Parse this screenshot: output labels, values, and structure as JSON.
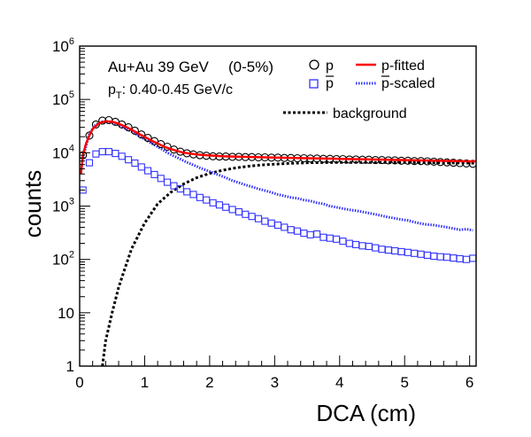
{
  "chart_data": {
    "type": "scatter",
    "xlabel": "DCA (cm)",
    "ylabel": "counts",
    "xlim": [
      0,
      6.1
    ],
    "ylim": [
      1,
      1000000
    ],
    "yscale": "log",
    "grid": false,
    "legend_position": "top-right",
    "x_ticks": [
      "0",
      "1",
      "2",
      "3",
      "4",
      "5",
      "6"
    ],
    "y_ticks": [
      "1",
      "10",
      "10^2",
      "10^3",
      "10^4",
      "10^5",
      "10^6"
    ],
    "annotations": {
      "system": "Au+Au 39 GeV",
      "centrality": "(0-5%)",
      "pt_prefix": "p",
      "pt_sub": "T",
      "pt_range": ": 0.40-0.45 GeV/c"
    },
    "legend": [
      {
        "label": "p",
        "marker": "open-circle",
        "color": "#000000"
      },
      {
        "label": "p-fitted",
        "marker": "solid-line",
        "color": "#ff0000"
      },
      {
        "label": "p",
        "overline": true,
        "marker": "open-square",
        "color": "#3333ff"
      },
      {
        "label": "p",
        "overline": true,
        "suffix": "-scaled",
        "marker": "dotted-line",
        "color": "#3333ff"
      },
      {
        "label": "background",
        "marker": "dotted-line",
        "color": "#000000"
      }
    ],
    "series": [
      {
        "name": "p",
        "marker": "open-circle",
        "color": "#000000",
        "x": [
          0.05,
          0.15,
          0.25,
          0.35,
          0.45,
          0.55,
          0.65,
          0.75,
          0.85,
          0.95,
          1.05,
          1.15,
          1.25,
          1.35,
          1.45,
          1.55,
          1.65,
          1.75,
          1.85,
          1.95,
          2.05,
          2.15,
          2.25,
          2.35,
          2.45,
          2.55,
          2.65,
          2.75,
          2.85,
          2.95,
          3.05,
          3.15,
          3.25,
          3.35,
          3.45,
          3.55,
          3.65,
          3.75,
          3.85,
          3.95,
          4.05,
          4.15,
          4.25,
          4.35,
          4.45,
          4.55,
          4.65,
          4.75,
          4.85,
          4.95,
          5.05,
          5.15,
          5.25,
          5.35,
          5.45,
          5.55,
          5.65,
          5.75,
          5.85,
          5.95,
          6.05
        ],
        "y": [
          9000,
          21000,
          34000,
          40000,
          41000,
          38000,
          34000,
          30000,
          26000,
          22000,
          19000,
          16500,
          14500,
          13000,
          11500,
          10500,
          9800,
          9300,
          9000,
          8800,
          8600,
          8500,
          8500,
          8400,
          8400,
          8300,
          8300,
          8200,
          8200,
          8100,
          8100,
          8000,
          8000,
          7900,
          7900,
          7800,
          7800,
          7700,
          7700,
          7600,
          7600,
          7500,
          7500,
          7400,
          7400,
          7300,
          7300,
          7200,
          7200,
          7100,
          7100,
          7000,
          7000,
          6900,
          6800,
          6700,
          6600,
          6500,
          6400,
          6300,
          6200
        ]
      },
      {
        "name": "p-fitted",
        "marker": "line",
        "color": "#ff0000",
        "x": [
          0.02,
          0.05,
          0.1,
          0.15,
          0.2,
          0.3,
          0.4,
          0.5,
          0.6,
          0.7,
          0.8,
          0.9,
          1.0,
          1.1,
          1.2,
          1.3,
          1.4,
          1.5,
          1.6,
          1.8,
          2.0,
          2.2,
          2.5,
          3.0,
          3.5,
          4.0,
          4.5,
          5.0,
          5.5,
          6.0,
          6.1
        ],
        "y": [
          4000,
          9000,
          15000,
          21000,
          28000,
          36000,
          39000,
          38000,
          35000,
          31000,
          27000,
          23000,
          20000,
          17000,
          15000,
          13000,
          11800,
          10800,
          10000,
          9300,
          8900,
          8600,
          8400,
          8100,
          7900,
          7700,
          7500,
          7300,
          7100,
          6900,
          6900
        ]
      },
      {
        "name": "p̄",
        "marker": "open-square",
        "color": "#3333ff",
        "x": [
          0.05,
          0.15,
          0.25,
          0.35,
          0.45,
          0.55,
          0.65,
          0.75,
          0.85,
          0.95,
          1.05,
          1.15,
          1.25,
          1.35,
          1.45,
          1.55,
          1.65,
          1.75,
          1.85,
          1.95,
          2.05,
          2.15,
          2.25,
          2.35,
          2.45,
          2.55,
          2.65,
          2.75,
          2.85,
          2.95,
          3.05,
          3.15,
          3.25,
          3.35,
          3.45,
          3.55,
          3.65,
          3.75,
          3.85,
          3.95,
          4.05,
          4.15,
          4.25,
          4.35,
          4.45,
          4.55,
          4.65,
          4.75,
          4.85,
          4.95,
          5.05,
          5.15,
          5.25,
          5.35,
          5.45,
          5.55,
          5.65,
          5.75,
          5.85,
          5.95,
          6.05
        ],
        "y": [
          2000,
          6500,
          9500,
          10500,
          10500,
          9700,
          8600,
          7400,
          6400,
          5400,
          4600,
          3900,
          3300,
          2800,
          2400,
          2100,
          1850,
          1650,
          1450,
          1300,
          1150,
          1050,
          950,
          860,
          780,
          700,
          640,
          580,
          520,
          480,
          440,
          400,
          360,
          340,
          310,
          290,
          300,
          260,
          250,
          240,
          220,
          200,
          190,
          180,
          175,
          165,
          155,
          150,
          145,
          140,
          135,
          130,
          125,
          120,
          115,
          112,
          110,
          106,
          103,
          100,
          105
        ]
      },
      {
        "name": "p̄-scaled",
        "marker": "dotted-line",
        "color": "#3333ff",
        "x": [
          0.05,
          0.15,
          0.25,
          0.35,
          0.45,
          0.55,
          0.65,
          0.75,
          0.85,
          0.95,
          1.05,
          1.15,
          1.25,
          1.35,
          1.45,
          1.55,
          1.65,
          1.75,
          1.85,
          1.95,
          2.05,
          2.15,
          2.25,
          2.35,
          2.45,
          2.55,
          2.65,
          2.75,
          2.85,
          2.95,
          3.05,
          3.15,
          3.25,
          3.35,
          3.45,
          3.55,
          3.65,
          3.75,
          3.85,
          3.95,
          4.05,
          4.15,
          4.25,
          4.35,
          4.45,
          4.55,
          4.65,
          4.75,
          4.85,
          4.95,
          5.05,
          5.15,
          5.25,
          5.35,
          5.45,
          5.55,
          5.65,
          5.75,
          5.85,
          5.95,
          6.05
        ],
        "y": [
          8000,
          23000,
          34000,
          38000,
          38000,
          35000,
          31000,
          27000,
          23000,
          19500,
          16500,
          14000,
          12000,
          10000,
          8700,
          7600,
          6600,
          5900,
          5200,
          4700,
          4200,
          3800,
          3400,
          3000,
          2750,
          2500,
          2300,
          2100,
          1950,
          1800,
          1650,
          1550,
          1450,
          1400,
          1300,
          1250,
          1150,
          1100,
          1000,
          950,
          900,
          850,
          820,
          780,
          740,
          700,
          660,
          620,
          590,
          560,
          540,
          500,
          470,
          450,
          440,
          420,
          400,
          380,
          360,
          370,
          350
        ]
      },
      {
        "name": "background",
        "marker": "dotted-line",
        "color": "#000000",
        "x": [
          0.35,
          0.4,
          0.5,
          0.6,
          0.7,
          0.8,
          1.0,
          1.2,
          1.4,
          1.6,
          1.8,
          2.0,
          2.2,
          2.4,
          2.6,
          2.8,
          3.0,
          3.2,
          3.5,
          4.0,
          4.5,
          5.0,
          5.5,
          6.0,
          6.1
        ],
        "y": [
          1,
          3,
          10,
          30,
          70,
          160,
          480,
          1100,
          1800,
          2600,
          3400,
          4100,
          4700,
          5200,
          5600,
          5900,
          6100,
          6300,
          6500,
          6600,
          6600,
          6600,
          6500,
          6400,
          6400
        ]
      }
    ]
  }
}
